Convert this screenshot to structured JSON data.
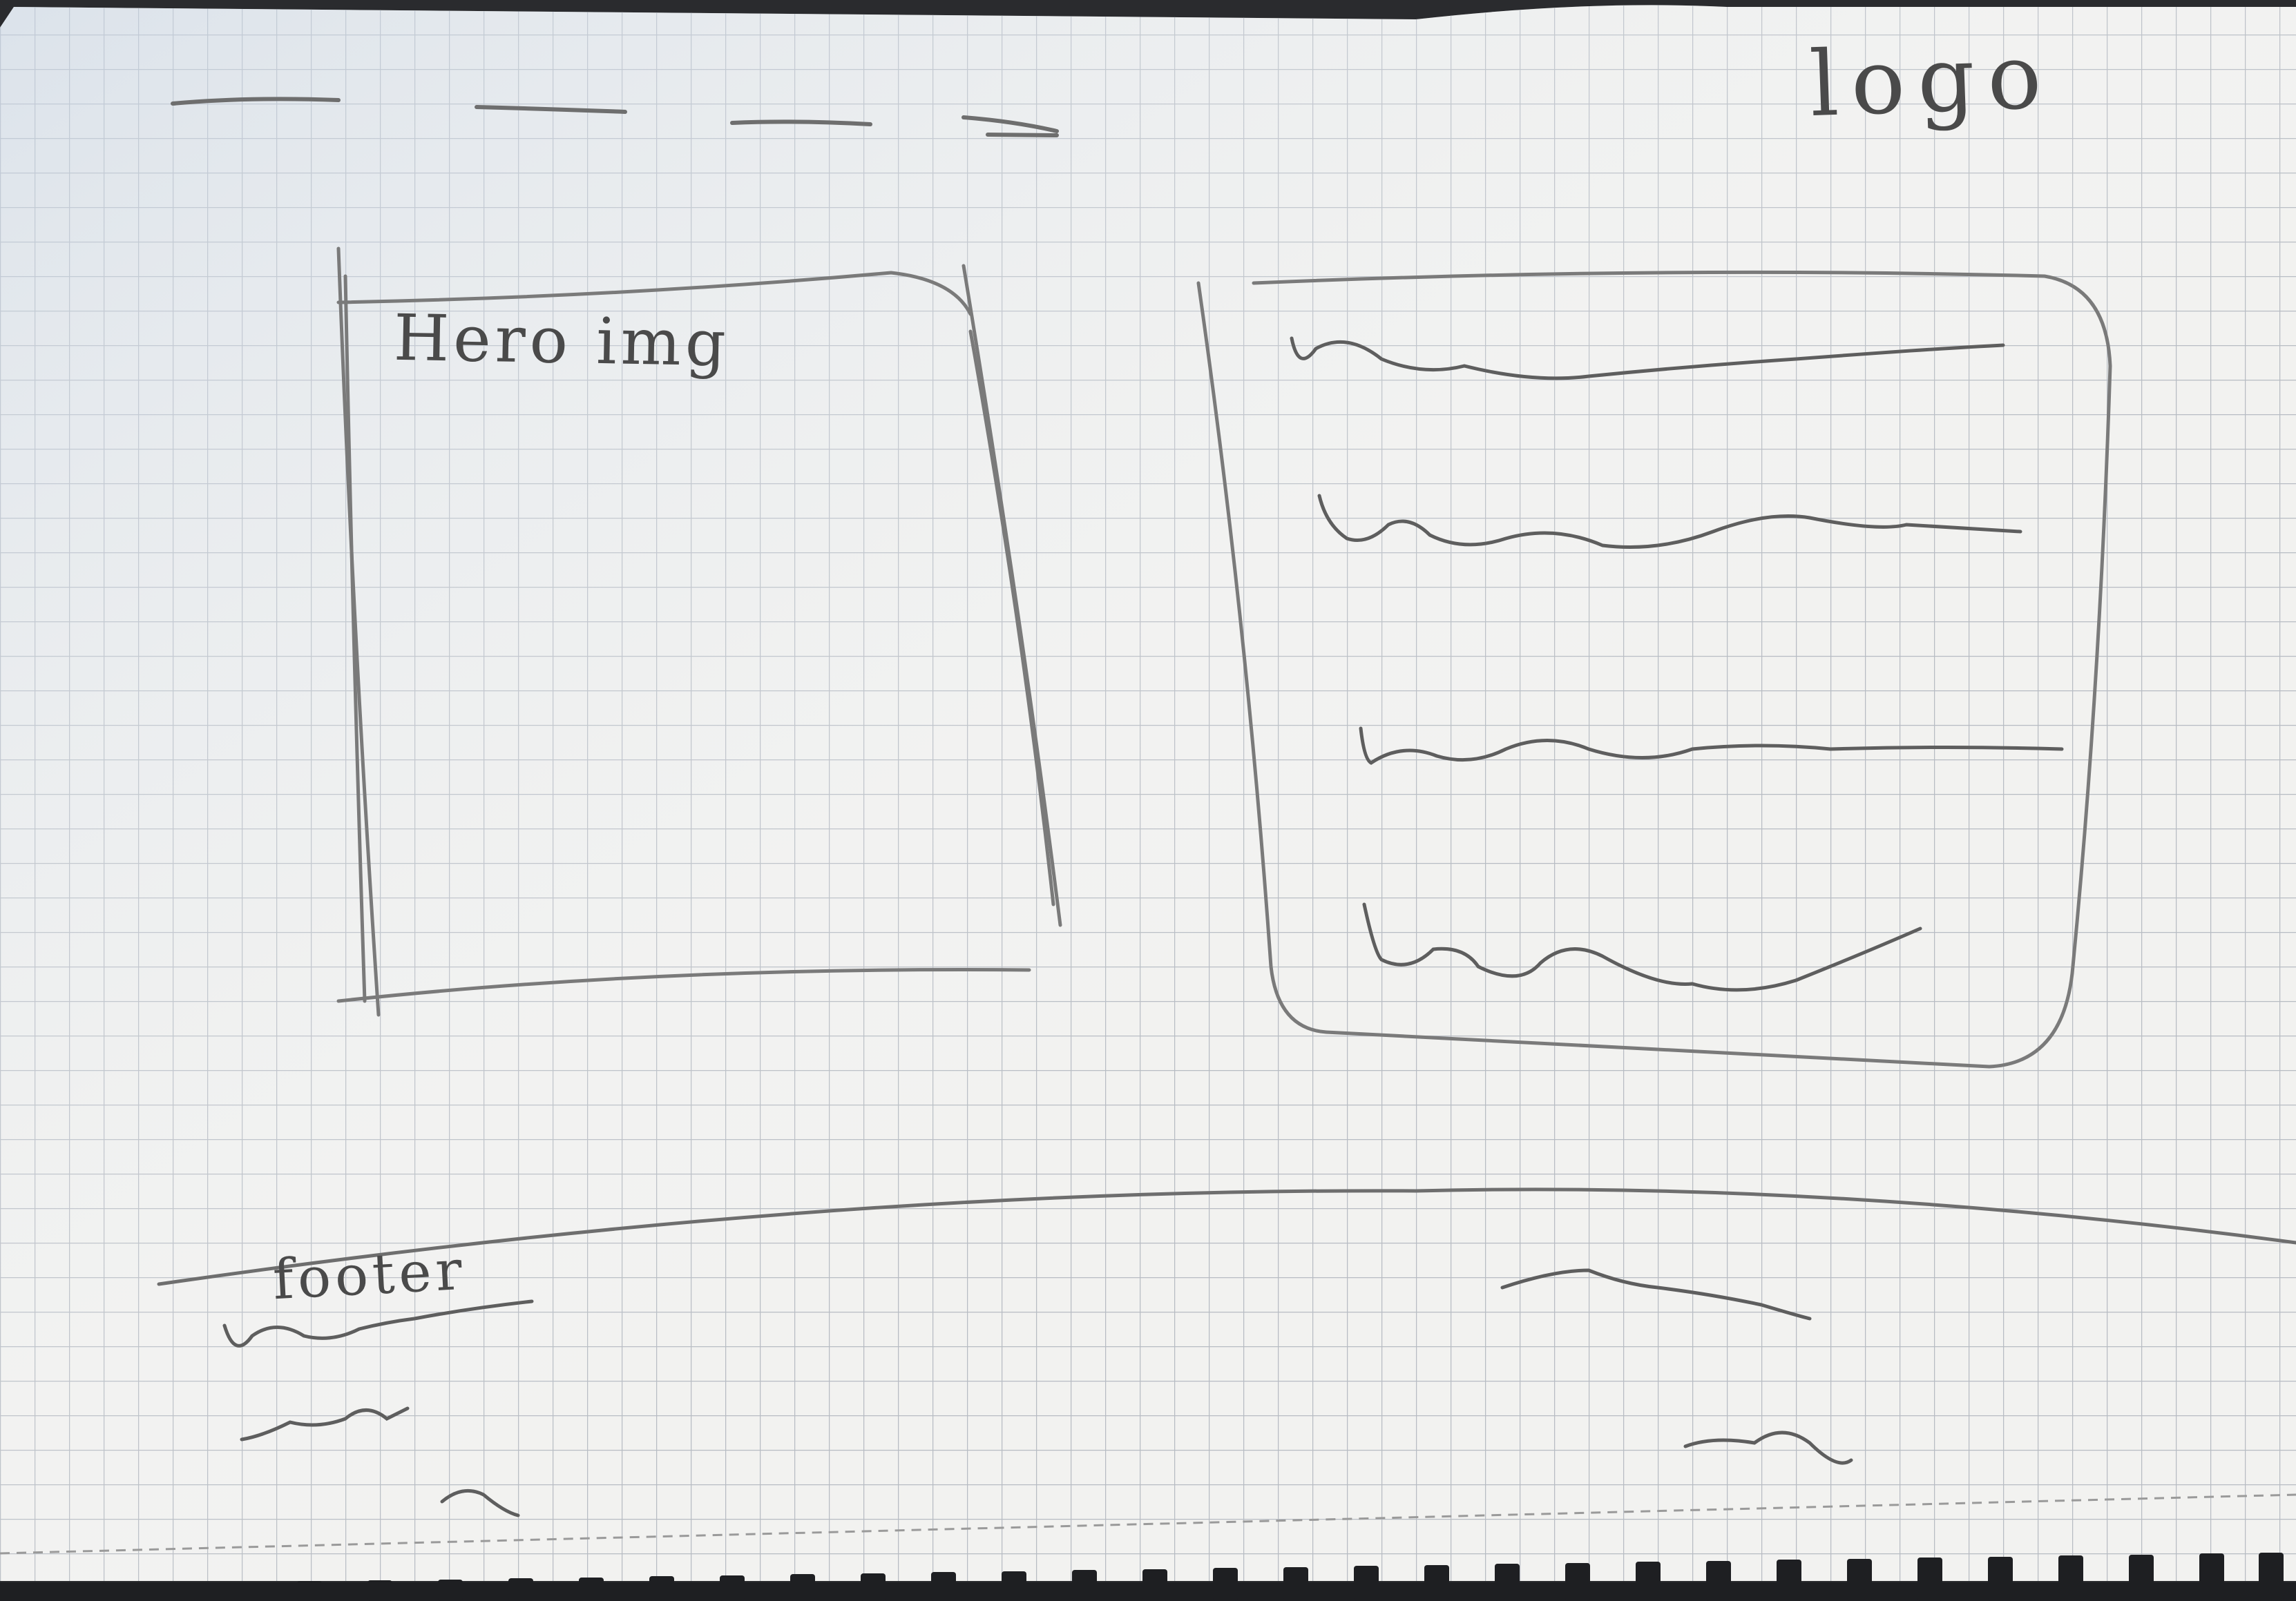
{
  "sketch": {
    "logo_label": "logo",
    "hero_label": "Hero img",
    "footer_label": "footer"
  },
  "colors": {
    "paper": "#f2f2f0",
    "grid": "#b7bcc3",
    "pencil": "#6e6e6e",
    "binding": "#1e1f22"
  }
}
